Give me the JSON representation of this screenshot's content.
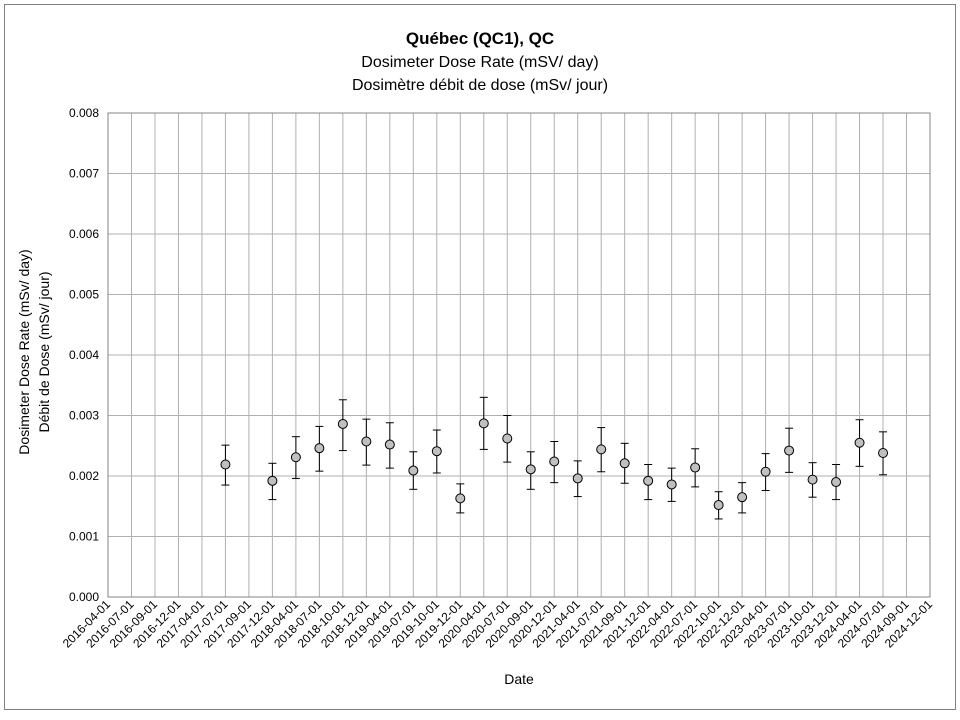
{
  "chart_data": {
    "type": "scatter",
    "title": "Québec (QC1), QC",
    "subtitle_en": "Dosimeter Dose Rate (mSV/ day)",
    "subtitle_fr": "Dosimètre débit de dose (mSv/ jour)",
    "xlabel": "Date",
    "ylabel_en": "Dosimeter Dose Rate (mSv/ day)",
    "ylabel_fr": "Débit de Dose (mSv/ jour)",
    "ylim": [
      0,
      0.008
    ],
    "y_ticks": [
      "0.000",
      "0.001",
      "0.002",
      "0.003",
      "0.004",
      "0.005",
      "0.006",
      "0.007",
      "0.008"
    ],
    "x_ticks": [
      "2016-04-01",
      "2016-07-01",
      "2016-09-01",
      "2016-12-01",
      "2017-04-01",
      "2017-07-01",
      "2017-09-01",
      "2017-12-01",
      "2018-04-01",
      "2018-07-01",
      "2018-10-01",
      "2018-12-01",
      "2019-04-01",
      "2019-07-01",
      "2019-10-01",
      "2019-12-01",
      "2020-04-01",
      "2020-07-01",
      "2020-09-01",
      "2020-12-01",
      "2021-04-01",
      "2021-07-01",
      "2021-09-01",
      "2021-12-01",
      "2022-04-01",
      "2022-07-01",
      "2022-10-01",
      "2022-12-01",
      "2023-04-01",
      "2023-07-01",
      "2023-10-01",
      "2023-12-01",
      "2024-04-01",
      "2024-07-01",
      "2024-09-01",
      "2024-12-01"
    ],
    "grid": true,
    "legend": "none",
    "points": [
      {
        "x": "2017-07-01",
        "y": 0.00219,
        "low": 0.00185,
        "high": 0.00251
      },
      {
        "x": "2017-12-01",
        "y": 0.00192,
        "low": 0.00161,
        "high": 0.00221
      },
      {
        "x": "2018-04-01",
        "y": 0.00231,
        "low": 0.00196,
        "high": 0.00265
      },
      {
        "x": "2018-07-01",
        "y": 0.00246,
        "low": 0.00208,
        "high": 0.00282
      },
      {
        "x": "2018-10-01",
        "y": 0.00286,
        "low": 0.00242,
        "high": 0.00326
      },
      {
        "x": "2018-12-01",
        "y": 0.00257,
        "low": 0.00218,
        "high": 0.00294
      },
      {
        "x": "2019-04-01",
        "y": 0.00252,
        "low": 0.00213,
        "high": 0.00288
      },
      {
        "x": "2019-07-01",
        "y": 0.00209,
        "low": 0.00178,
        "high": 0.0024
      },
      {
        "x": "2019-10-01",
        "y": 0.00241,
        "low": 0.00205,
        "high": 0.00276
      },
      {
        "x": "2019-12-01",
        "y": 0.00163,
        "low": 0.00139,
        "high": 0.00187
      },
      {
        "x": "2020-04-01",
        "y": 0.00287,
        "low": 0.00244,
        "high": 0.0033
      },
      {
        "x": "2020-07-01",
        "y": 0.00262,
        "low": 0.00223,
        "high": 0.003
      },
      {
        "x": "2020-09-01",
        "y": 0.00211,
        "low": 0.00178,
        "high": 0.0024
      },
      {
        "x": "2020-12-01",
        "y": 0.00224,
        "low": 0.00189,
        "high": 0.00257
      },
      {
        "x": "2021-04-01",
        "y": 0.00196,
        "low": 0.00166,
        "high": 0.00225
      },
      {
        "x": "2021-07-01",
        "y": 0.00244,
        "low": 0.00207,
        "high": 0.0028
      },
      {
        "x": "2021-09-01",
        "y": 0.00221,
        "low": 0.00188,
        "high": 0.00254
      },
      {
        "x": "2021-12-01",
        "y": 0.00192,
        "low": 0.00161,
        "high": 0.00219
      },
      {
        "x": "2022-04-01",
        "y": 0.00186,
        "low": 0.00158,
        "high": 0.00213
      },
      {
        "x": "2022-07-01",
        "y": 0.00214,
        "low": 0.00182,
        "high": 0.00245
      },
      {
        "x": "2022-10-01",
        "y": 0.00152,
        "low": 0.00129,
        "high": 0.00174
      },
      {
        "x": "2022-12-01",
        "y": 0.00165,
        "low": 0.00139,
        "high": 0.00189
      },
      {
        "x": "2023-04-01",
        "y": 0.00207,
        "low": 0.00176,
        "high": 0.00237
      },
      {
        "x": "2023-07-01",
        "y": 0.00242,
        "low": 0.00206,
        "high": 0.00279
      },
      {
        "x": "2023-10-01",
        "y": 0.00194,
        "low": 0.00165,
        "high": 0.00222
      },
      {
        "x": "2023-12-01",
        "y": 0.0019,
        "low": 0.00161,
        "high": 0.00219
      },
      {
        "x": "2024-04-01",
        "y": 0.00255,
        "low": 0.00216,
        "high": 0.00293
      },
      {
        "x": "2024-07-01",
        "y": 0.00238,
        "low": 0.00202,
        "high": 0.00273
      }
    ],
    "colors": {
      "marker_fill": "#c0c0c0",
      "marker_stroke": "#000000",
      "grid": "#b0b0b0",
      "axis": "#868686",
      "error_bar": "#000000"
    }
  }
}
